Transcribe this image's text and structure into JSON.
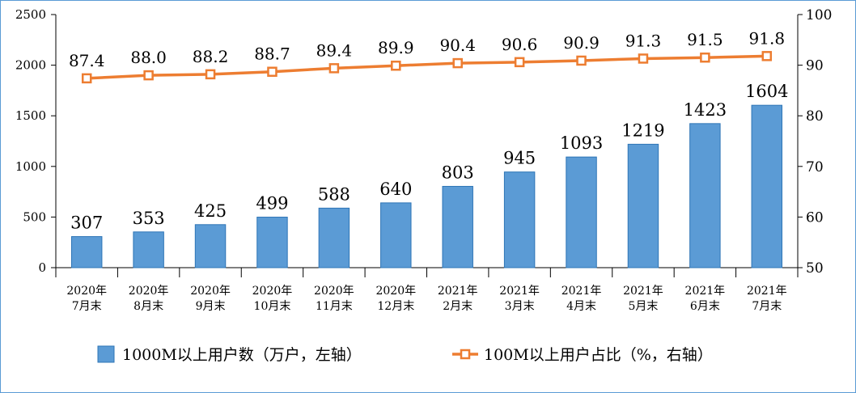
{
  "chart_data": {
    "type": "bar+line",
    "categories": [
      "2020年\n7月末",
      "2020年\n8月末",
      "2020年\n9月末",
      "2020年\n10月末",
      "2020年\n11月末",
      "2020年\n12月末",
      "2021年\n2月末",
      "2021年\n3月末",
      "2021年\n4月末",
      "2021年\n5月末",
      "2021年\n6月末",
      "2021年\n7月末"
    ],
    "bar_series": {
      "name": "1000M以上用户数（万户，左轴）",
      "values": [
        307,
        353,
        425,
        499,
        588,
        640,
        803,
        945,
        1093,
        1219,
        1423,
        1604
      ],
      "color": "#5b9bd5",
      "axis": "left"
    },
    "line_series": {
      "name": "100M以上用户占比（%，右轴）",
      "values": [
        87.4,
        88.0,
        88.2,
        88.7,
        89.4,
        89.9,
        90.4,
        90.6,
        90.9,
        91.3,
        91.5,
        91.8
      ],
      "labels": [
        "87.4",
        "88.0",
        "88.2",
        "88.7",
        "89.4",
        "89.9",
        "90.4",
        "90.6",
        "90.9",
        "91.3",
        "91.5",
        "91.8"
      ],
      "color": "#ed7d31",
      "axis": "right"
    },
    "left_axis": {
      "ylim": [
        0,
        2500
      ],
      "ticks": [
        0,
        500,
        1000,
        1500,
        2000,
        2500
      ]
    },
    "right_axis": {
      "ylim": [
        50,
        100
      ],
      "ticks": [
        50,
        60,
        70,
        80,
        90,
        100
      ]
    },
    "legend_position": "bottom",
    "grid": false
  }
}
